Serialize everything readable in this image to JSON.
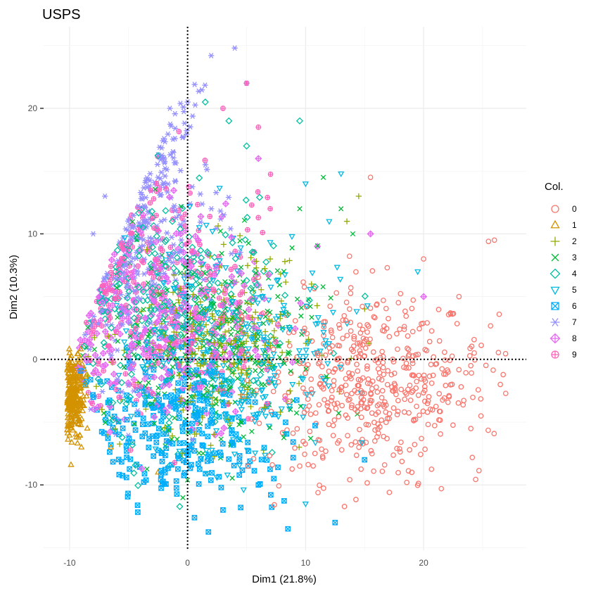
{
  "chart_data": {
    "type": "scatter",
    "title": "USPS",
    "xlabel": "Dim1 (21.8%)",
    "ylabel": "Dim2 (10.3%)",
    "xlim": [
      -12.2,
      28.7
    ],
    "ylim": [
      -15.2,
      26.5
    ],
    "x_ticks": [
      -10,
      0,
      10,
      20
    ],
    "y_ticks": [
      -10,
      0,
      10,
      20
    ],
    "x_tick_labels": [
      "-10",
      "0",
      "10",
      "20"
    ],
    "y_tick_labels": [
      "-10",
      "0",
      "10",
      "20"
    ],
    "grid": true,
    "reference_lines": {
      "x": 0,
      "y": 0,
      "style": "dotted"
    },
    "legend": {
      "title": "Col.",
      "placement": "right"
    },
    "series": [
      {
        "name": "0",
        "color": "#F8766D",
        "shape": "circle",
        "centroid": [
          15.5,
          -2.0
        ],
        "spread": [
          4.5,
          3.8
        ],
        "points": [
          [
            26,
            9.5
          ],
          [
            25.5,
            9.4
          ],
          [
            21.5,
            -10.3
          ],
          [
            26.5,
            -2
          ],
          [
            24,
            -0.5
          ],
          [
            15.5,
            14.5
          ],
          [
            9.5,
            -8.5
          ],
          [
            20,
            8
          ],
          [
            23,
            5
          ],
          [
            19,
            -9
          ]
        ]
      },
      {
        "name": "1",
        "color": "#D39200",
        "shape": "triangle",
        "centroid": [
          -9.7,
          -3.0
        ],
        "spread": [
          0.5,
          1.6
        ],
        "points": [
          [
            -9,
            -7
          ],
          [
            -6.5,
            -7
          ],
          [
            -2.5,
            -9
          ],
          [
            -10,
            0.5
          ],
          [
            -8.5,
            -5.5
          ]
        ]
      },
      {
        "name": "2",
        "color": "#93AA00",
        "shape": "plus",
        "centroid": [
          2.0,
          1.5
        ],
        "spread": [
          4.0,
          3.5
        ],
        "points": [
          [
            14.5,
            13
          ],
          [
            13.5,
            11
          ],
          [
            10.5,
            6
          ],
          [
            7,
            8
          ]
        ]
      },
      {
        "name": "3",
        "color": "#00BA38",
        "shape": "cross",
        "centroid": [
          2.0,
          1.0
        ],
        "spread": [
          4.5,
          4.0
        ],
        "points": [
          [
            11.5,
            14.5
          ],
          [
            13,
            12
          ],
          [
            9.5,
            12
          ],
          [
            14,
            10
          ]
        ]
      },
      {
        "name": "4",
        "color": "#00C19F",
        "shape": "diamond",
        "centroid": [
          -1.0,
          3.5
        ],
        "spread": [
          4.5,
          4.5
        ],
        "points": [
          [
            9.5,
            19
          ],
          [
            1.5,
            20.5
          ],
          [
            3.5,
            19
          ],
          [
            5,
            17
          ]
        ]
      },
      {
        "name": "5",
        "color": "#00B9E3",
        "shape": "triangle-down",
        "centroid": [
          4.0,
          1.0
        ],
        "spread": [
          4.5,
          4.5
        ],
        "points": [
          [
            13,
            14.8
          ],
          [
            12,
            11
          ],
          [
            10,
            14
          ],
          [
            10,
            -11.5
          ],
          [
            19.5,
            7
          ]
        ]
      },
      {
        "name": "6",
        "color": "#00ADFA",
        "shape": "square-cross",
        "centroid": [
          -1.0,
          -5.0
        ],
        "spread": [
          4.5,
          2.8
        ],
        "points": [
          [
            8.5,
            -13.5
          ],
          [
            12.5,
            -13
          ],
          [
            4.5,
            -11.8
          ],
          [
            3,
            -12
          ],
          [
            15,
            -8
          ],
          [
            6,
            -10
          ]
        ]
      },
      {
        "name": "7",
        "color": "#9590FF",
        "shape": "asterisk",
        "centroid": [
          -4.0,
          9.0
        ],
        "spread": [
          3.0,
          5.5
        ],
        "points": [
          [
            4,
            24.8
          ],
          [
            2,
            24.2
          ],
          [
            0,
            20.5
          ],
          [
            -1.5,
            20
          ],
          [
            5,
            22
          ],
          [
            -8,
            10
          ],
          [
            -7,
            13
          ]
        ]
      },
      {
        "name": "8",
        "color": "#E76BF3",
        "shape": "diamond-plus",
        "centroid": [
          -2.0,
          2.5
        ],
        "spread": [
          4.5,
          4.0
        ],
        "points": [
          [
            15.5,
            10
          ],
          [
            20,
            5
          ],
          [
            6,
            16
          ],
          [
            11,
            9
          ]
        ]
      },
      {
        "name": "9",
        "color": "#FF62BC",
        "shape": "circle-plus",
        "centroid": [
          -2.0,
          5.0
        ],
        "spread": [
          4.5,
          4.5
        ],
        "points": [
          [
            5,
            22
          ],
          [
            6,
            18.5
          ],
          [
            3,
            20
          ],
          [
            7,
            12
          ]
        ]
      }
    ]
  }
}
